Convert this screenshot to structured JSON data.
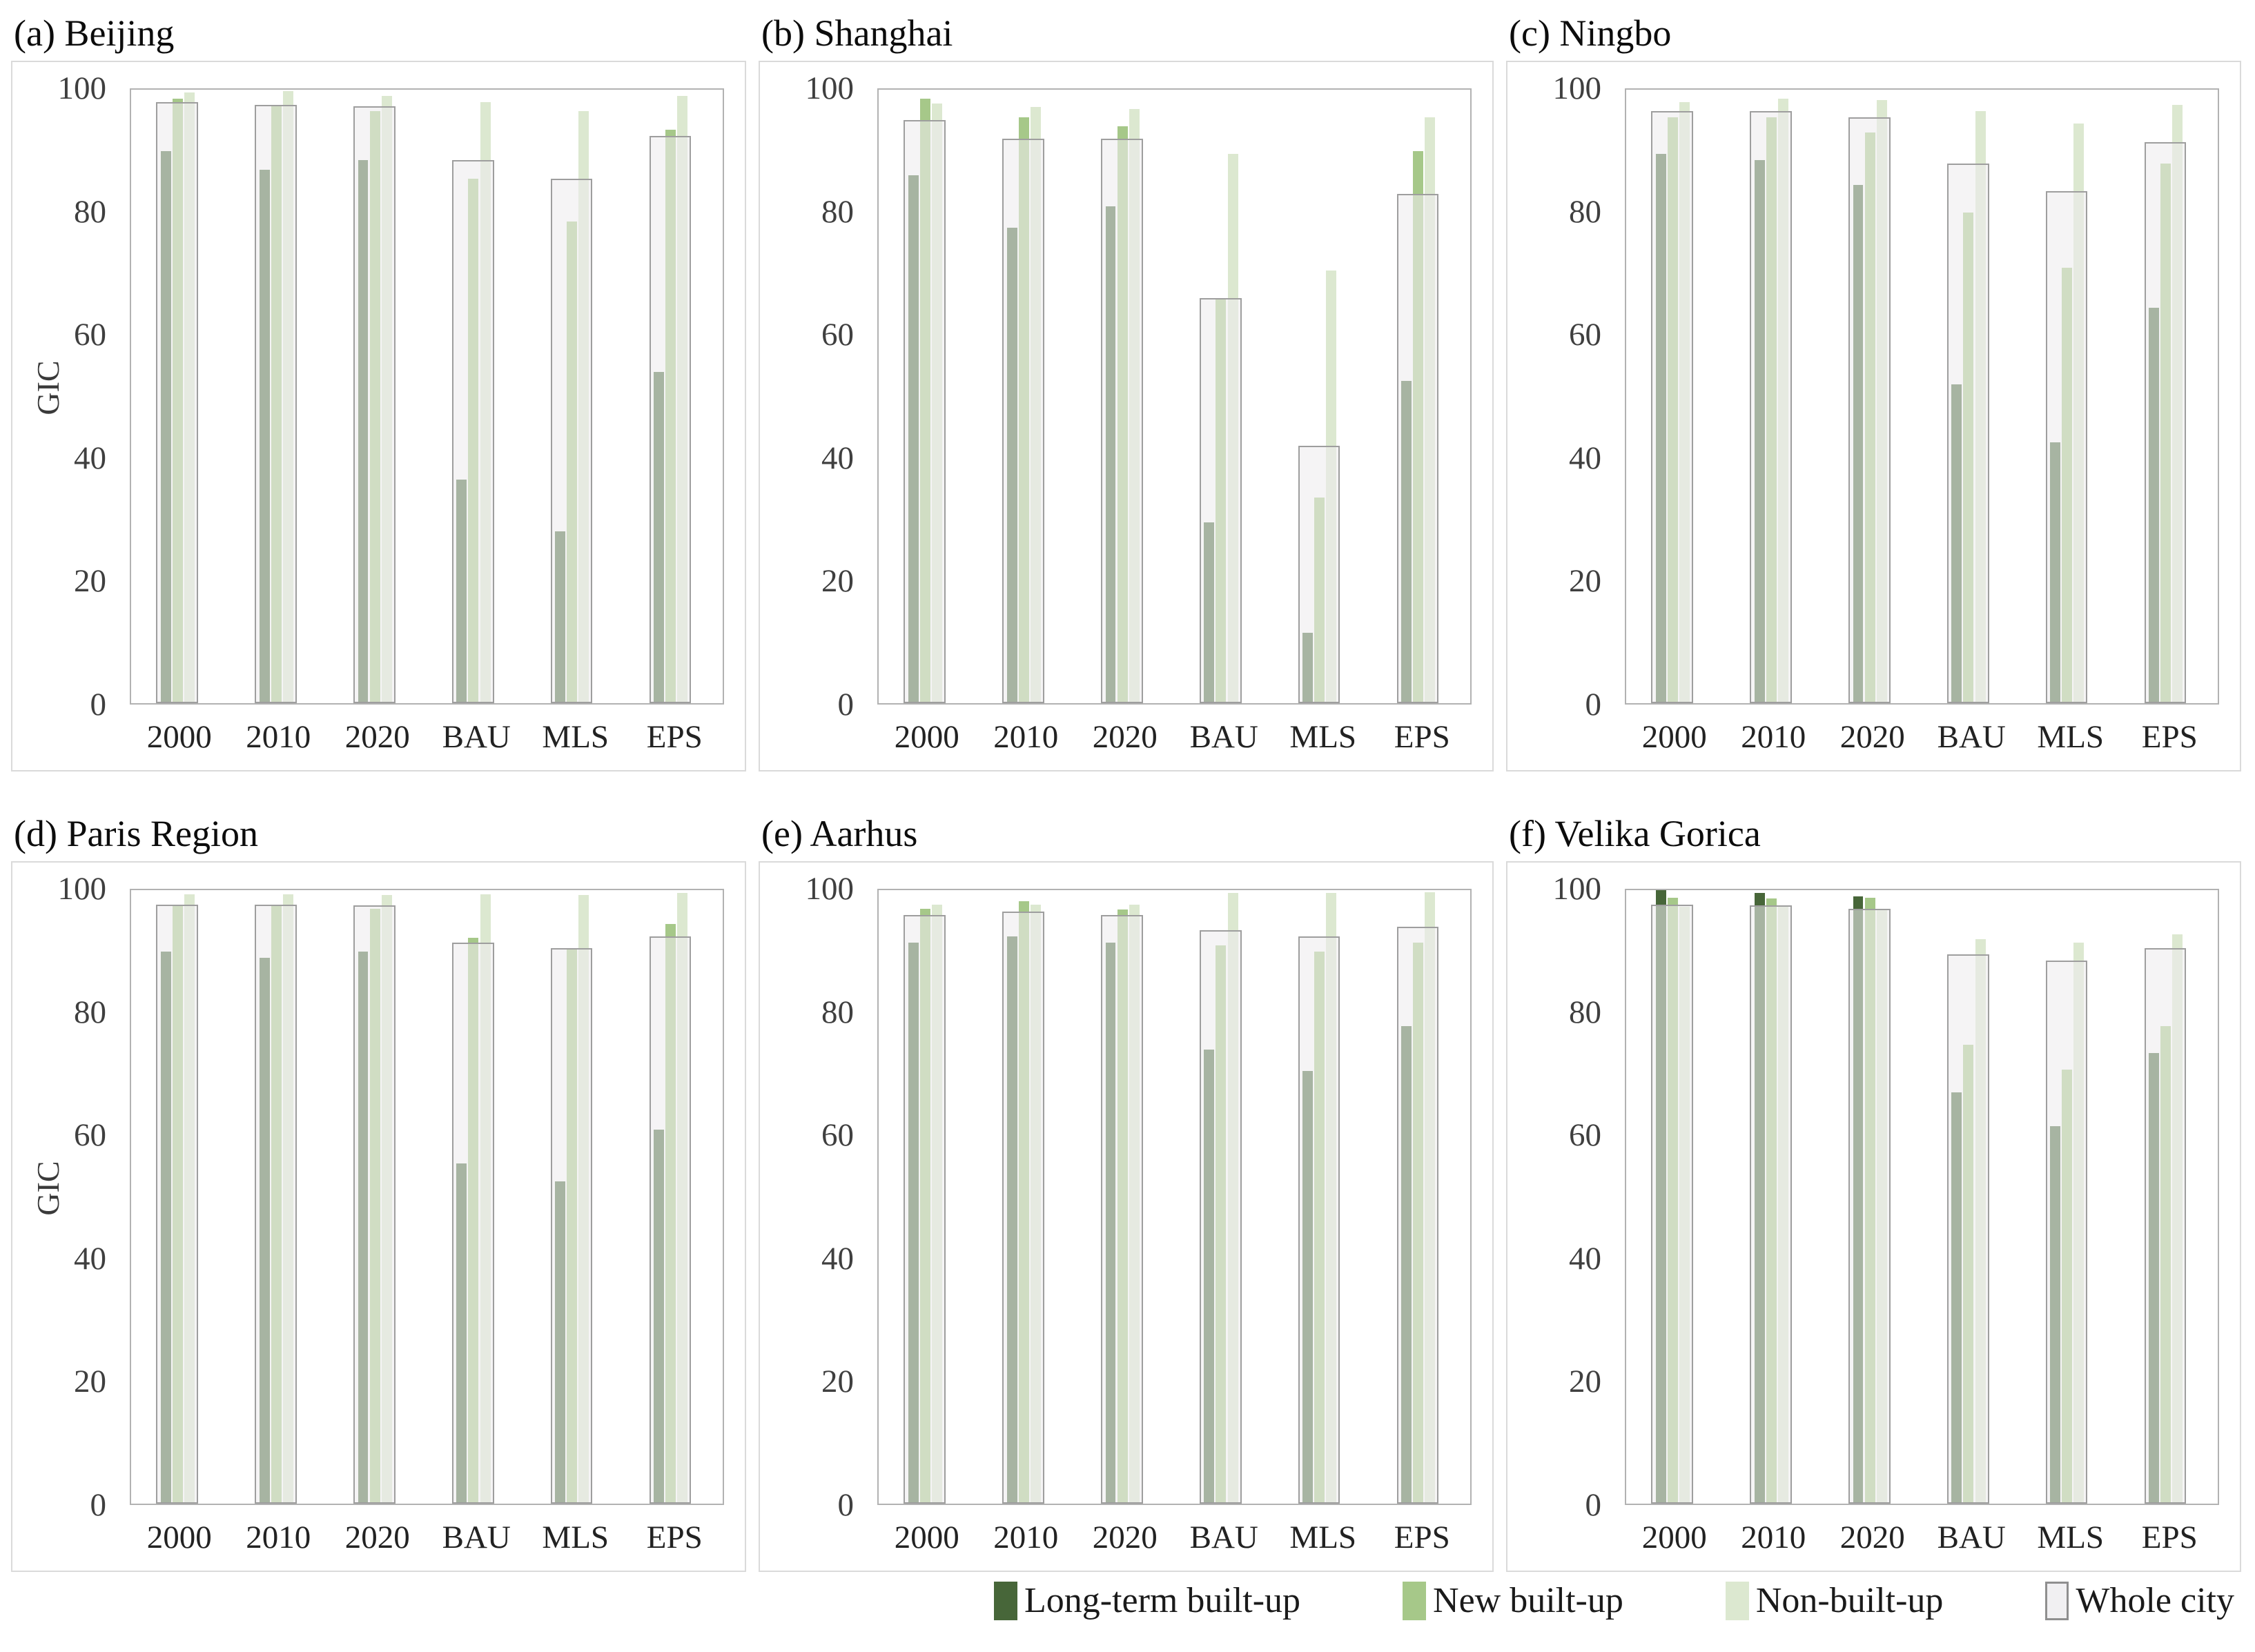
{
  "figure": {
    "description": "Six-panel bar chart figure comparing GIC across zones and scenarios for six cities"
  },
  "legend": [
    {
      "label": "Long-term built-up",
      "color": "#476639",
      "border": ""
    },
    {
      "label": "New built-up",
      "color": "#a6c889",
      "border": ""
    },
    {
      "label": "Non-built-up",
      "color": "#dce8d0",
      "border": ""
    },
    {
      "label": "Whole city",
      "color": "#f1f0f2",
      "border": "#8f8f8f"
    }
  ],
  "style": {
    "whole_city_fill": "rgba(237,236,238,0.58)",
    "whole_city_border": "#9e9e9e",
    "frame_border": "#b2b2b2",
    "panel_border": "#dadada"
  },
  "chart_data": {
    "type": "bar",
    "ylabel": "GIC",
    "ylim": [
      0,
      100
    ],
    "yticks": [
      0,
      20,
      40,
      60,
      80,
      100
    ],
    "categories": [
      "2000",
      "2010",
      "2020",
      "BAU",
      "MLS",
      "EPS"
    ],
    "series_names": [
      "Long-term built-up",
      "New built-up",
      "Non-built-up",
      "Whole city"
    ],
    "panels": [
      {
        "id": "a",
        "title": "(a) Beijing",
        "show_ylabel": true,
        "series": [
          {
            "name": "Long-term built-up",
            "values": [
              90,
              87,
              88.5,
              36.5,
              28,
              54
            ]
          },
          {
            "name": "New built-up",
            "values": [
              98.5,
              97.5,
              96.5,
              85.5,
              78.5,
              93.5
            ]
          },
          {
            "name": "Non-built-up",
            "values": [
              99.5,
              99.8,
              99,
              98,
              96.5,
              99
            ]
          },
          {
            "name": "Whole city",
            "values": [
              98,
              97.5,
              97.3,
              88.5,
              85.5,
              92.5
            ]
          }
        ]
      },
      {
        "id": "b",
        "title": "(b) Shanghai",
        "show_ylabel": false,
        "series": [
          {
            "name": "Long-term built-up",
            "values": [
              86,
              77.5,
              81,
              29.5,
              11.5,
              52.5
            ]
          },
          {
            "name": "New built-up",
            "values": [
              98.5,
              95.5,
              94,
              66,
              33.5,
              90
            ]
          },
          {
            "name": "Non-built-up",
            "values": [
              97.8,
              97.2,
              96.8,
              89.5,
              70.5,
              95.5
            ]
          },
          {
            "name": "Whole city",
            "values": [
              95,
              92,
              92,
              66,
              42,
              83
            ]
          }
        ]
      },
      {
        "id": "c",
        "title": "(c) Ningbo",
        "show_ylabel": false,
        "series": [
          {
            "name": "Long-term built-up",
            "values": [
              89.5,
              88.5,
              84.5,
              52,
              42.5,
              64.5
            ]
          },
          {
            "name": "New built-up",
            "values": [
              95.5,
              95.5,
              93,
              80,
              71,
              88
            ]
          },
          {
            "name": "Non-built-up",
            "values": [
              98,
              98.5,
              98.3,
              96.5,
              94.5,
              97.5
            ]
          },
          {
            "name": "Whole city",
            "values": [
              96.5,
              96.5,
              95.5,
              88,
              83.5,
              91.5
            ]
          }
        ]
      },
      {
        "id": "d",
        "title": "(d) Paris Region",
        "show_ylabel": true,
        "series": [
          {
            "name": "Long-term built-up",
            "values": [
              90,
              89,
              90,
              55.5,
              52.5,
              61
            ]
          },
          {
            "name": "New built-up",
            "values": [
              97.5,
              97.4,
              97,
              92.2,
              90.5,
              94.5
            ]
          },
          {
            "name": "Non-built-up",
            "values": [
              99.3,
              99.3,
              99.2,
              99.3,
              99.2,
              99.5
            ]
          },
          {
            "name": "Whole city",
            "values": [
              97.6,
              97.6,
              97.5,
              91.5,
              90.5,
              92.5
            ]
          }
        ]
      },
      {
        "id": "e",
        "title": "(e) Aarhus",
        "show_ylabel": false,
        "series": [
          {
            "name": "Long-term built-up",
            "values": [
              91.5,
              92.5,
              91.5,
              74,
              70.5,
              77.8
            ]
          },
          {
            "name": "New built-up",
            "values": [
              97,
              98.2,
              96.8,
              91,
              90,
              91.5
            ]
          },
          {
            "name": "Non-built-up",
            "values": [
              97.6,
              97.6,
              97.6,
              99.6,
              99.6,
              99.7
            ]
          },
          {
            "name": "Whole city",
            "values": [
              96,
              96.5,
              96,
              93.5,
              92.5,
              94
            ]
          }
        ]
      },
      {
        "id": "f",
        "title": "(f) Velika Gorica",
        "show_ylabel": false,
        "series": [
          {
            "name": "Long-term built-up",
            "values": [
              100,
              99.5,
              99,
              67,
              61.5,
              73.5
            ]
          },
          {
            "name": "New built-up",
            "values": [
              98.8,
              98.7,
              98.8,
              74.8,
              70.8,
              77.8
            ]
          },
          {
            "name": "Non-built-up",
            "values": [
              97.3,
              97.3,
              97,
              92,
              91.5,
              92.8
            ]
          },
          {
            "name": "Whole city",
            "values": [
              97.6,
              97.5,
              97,
              89.5,
              88.5,
              90.5
            ]
          }
        ]
      }
    ]
  }
}
